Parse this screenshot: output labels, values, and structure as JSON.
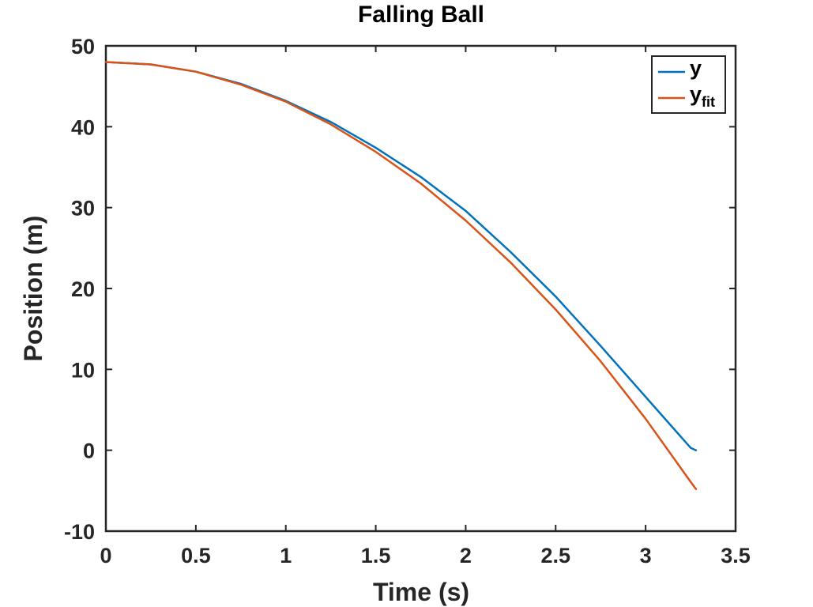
{
  "chart_data": {
    "type": "line",
    "title": "Falling Ball",
    "xlabel": "Time (s)",
    "ylabel": "Position (m)",
    "xlim": [
      0,
      3.5
    ],
    "ylim": [
      -10,
      50
    ],
    "xticks": [
      0,
      0.5,
      1,
      1.5,
      2,
      2.5,
      3,
      3.5
    ],
    "yticks": [
      -10,
      0,
      10,
      20,
      30,
      40,
      50
    ],
    "xtick_labels": [
      "0",
      "0.5",
      "1",
      "1.5",
      "2",
      "2.5",
      "3",
      "3.5"
    ],
    "ytick_labels": [
      "-10",
      "0",
      "10",
      "20",
      "30",
      "40",
      "50"
    ],
    "grid": false,
    "legend_position": "top-right",
    "series": [
      {
        "name": "y",
        "color": "#0072BD",
        "x": [
          0,
          0.25,
          0.5,
          0.75,
          1.0,
          1.25,
          1.5,
          1.75,
          2.0,
          2.25,
          2.5,
          2.75,
          3.0,
          3.25,
          3.28
        ],
        "y": [
          48.0,
          47.7,
          46.8,
          45.3,
          43.2,
          40.6,
          37.4,
          33.8,
          29.6,
          24.5,
          19.0,
          12.9,
          6.6,
          0.3,
          0.0
        ]
      },
      {
        "name": "y",
        "subscript": "fit",
        "color": "#D95319",
        "x": [
          0,
          0.25,
          0.5,
          0.75,
          1.0,
          1.25,
          1.5,
          1.75,
          2.0,
          2.25,
          2.5,
          2.75,
          3.0,
          3.25,
          3.28
        ],
        "y": [
          48.0,
          47.7,
          46.8,
          45.2,
          43.1,
          40.3,
          36.9,
          33.0,
          28.4,
          23.2,
          17.4,
          11.0,
          3.9,
          -3.9,
          -4.8
        ]
      }
    ]
  }
}
